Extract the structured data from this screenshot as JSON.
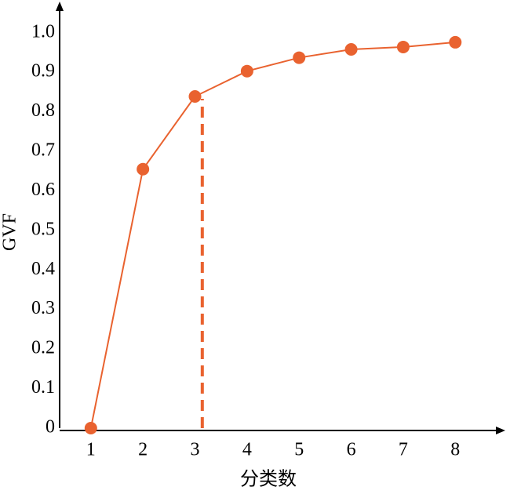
{
  "chart_data": {
    "type": "line",
    "x_label": "分类数",
    "y_label": "GVF",
    "x": [
      1,
      2,
      3,
      4,
      5,
      6,
      7,
      8
    ],
    "series": [
      {
        "name": "GVF",
        "color": "#e9622f",
        "values": [
          0,
          0.655,
          0.839,
          0.903,
          0.937,
          0.958,
          0.964,
          0.976
        ]
      }
    ],
    "xlim": [
      0.4,
      8.9
    ],
    "ylim": [
      0,
      1.073
    ],
    "xticks": [
      1,
      2,
      3,
      4,
      5,
      6,
      7,
      8
    ],
    "yticks": [
      0,
      0.1,
      0.2,
      0.3,
      0.4,
      0.5,
      0.6,
      0.7,
      0.8,
      0.9,
      {
        "value": 1,
        "label": "1.0"
      }
    ],
    "reference_line": {
      "x": 3.14,
      "y": 0.833,
      "color": "#e9622f"
    }
  }
}
